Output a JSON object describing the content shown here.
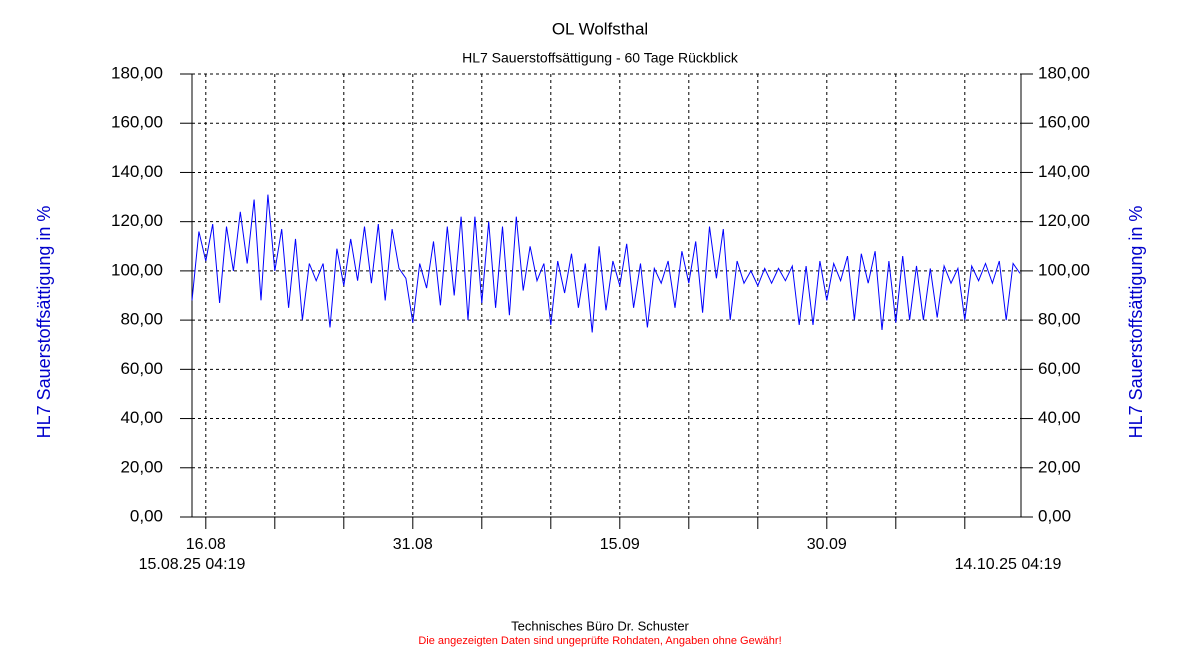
{
  "chart_data": {
    "type": "line",
    "title": "OL Wolfsthal",
    "subtitle": "HL7 Sauerstoffsättigung - 60 Tage Rückblick",
    "y_label": "HL7 Sauerstoffsättigung in %",
    "y2_label": "HL7 Sauerstoffsättigung in %",
    "start_label": "15.08.25 04:19",
    "end_label": "14.10.25 04:19",
    "footer": "Technisches Büro Dr. Schuster",
    "disclaimer": "Die angezeigten Daten sind ungeprüfte Rohdaten, Angaben ohne Gewähr!",
    "categories": [
      null,
      null,
      "16.08",
      null,
      null,
      null,
      null,
      null,
      null,
      null,
      null,
      null,
      null,
      null,
      null,
      null,
      null,
      null,
      null,
      null,
      null,
      null,
      null,
      null,
      null,
      null,
      null,
      null,
      null,
      null,
      null,
      null,
      "31.08",
      null,
      null,
      null,
      null,
      null,
      null,
      null,
      null,
      null,
      null,
      null,
      null,
      null,
      null,
      null,
      null,
      null,
      null,
      null,
      null,
      null,
      null,
      null,
      null,
      null,
      null,
      null,
      null,
      null,
      "15.09",
      null,
      null,
      null,
      null,
      null,
      null,
      null,
      null,
      null,
      null,
      null,
      null,
      null,
      null,
      null,
      null,
      null,
      null,
      null,
      null,
      null,
      null,
      null,
      null,
      null,
      null,
      null,
      null,
      null,
      "30.09",
      null,
      null,
      null,
      null,
      null,
      null,
      null,
      null,
      null,
      null,
      null,
      null,
      null,
      null,
      null,
      null,
      null,
      null,
      null,
      null,
      null,
      null,
      null,
      null,
      null,
      null,
      null,
      null
    ],
    "series": [
      {
        "name": "HL7 Sauerstoffsättigung",
        "color": "#0000ff",
        "values": [
          88,
          116,
          104,
          119,
          87,
          118,
          100,
          124,
          103,
          129,
          88,
          131,
          100,
          117,
          85,
          113,
          80,
          103,
          96,
          103,
          77,
          109,
          94,
          113,
          96,
          118,
          95,
          119,
          88,
          117,
          101,
          97,
          79,
          103,
          93,
          112,
          86,
          118,
          90,
          122,
          80,
          122,
          87,
          120,
          85,
          118,
          82,
          122,
          92,
          110,
          96,
          103,
          78,
          104,
          91,
          107,
          85,
          103,
          75,
          110,
          84,
          104,
          94,
          111,
          85,
          103,
          77,
          101,
          95,
          104,
          85,
          108,
          95,
          112,
          83,
          118,
          97,
          117,
          80,
          104,
          95,
          100,
          94,
          101,
          95,
          101,
          96,
          102,
          78,
          102,
          78,
          104,
          88,
          103,
          96,
          106,
          80,
          107,
          95,
          108,
          76,
          104,
          79,
          106,
          80,
          102,
          80,
          101,
          81,
          102,
          95,
          101,
          80,
          102,
          96,
          103,
          95,
          104,
          80,
          103,
          99
        ]
      }
    ],
    "ylim": [
      0,
      180
    ],
    "yticks": [
      {
        "value": 0,
        "label": "0,00"
      },
      {
        "value": 20,
        "label": "20,00"
      },
      {
        "value": 40,
        "label": "40,00"
      },
      {
        "value": 60,
        "label": "60,00"
      },
      {
        "value": 80,
        "label": "80,00"
      },
      {
        "value": 100,
        "label": "100,00"
      },
      {
        "value": 120,
        "label": "120,00"
      },
      {
        "value": 140,
        "label": "140,00"
      },
      {
        "value": 160,
        "label": "160,00"
      },
      {
        "value": 180,
        "label": "180,00"
      }
    ],
    "y2lim": [
      0,
      180
    ],
    "y2ticks": [
      {
        "value": 0,
        "label": "0,00"
      },
      {
        "value": 20,
        "label": "20,00"
      },
      {
        "value": 40,
        "label": "40,00"
      },
      {
        "value": 60,
        "label": "60,00"
      },
      {
        "value": 80,
        "label": "80,00"
      },
      {
        "value": 100,
        "label": "100,00"
      },
      {
        "value": 120,
        "label": "120,00"
      },
      {
        "value": 140,
        "label": "140,00"
      },
      {
        "value": 160,
        "label": "160,00"
      },
      {
        "value": 180,
        "label": "180,00"
      }
    ],
    "grid": true
  }
}
